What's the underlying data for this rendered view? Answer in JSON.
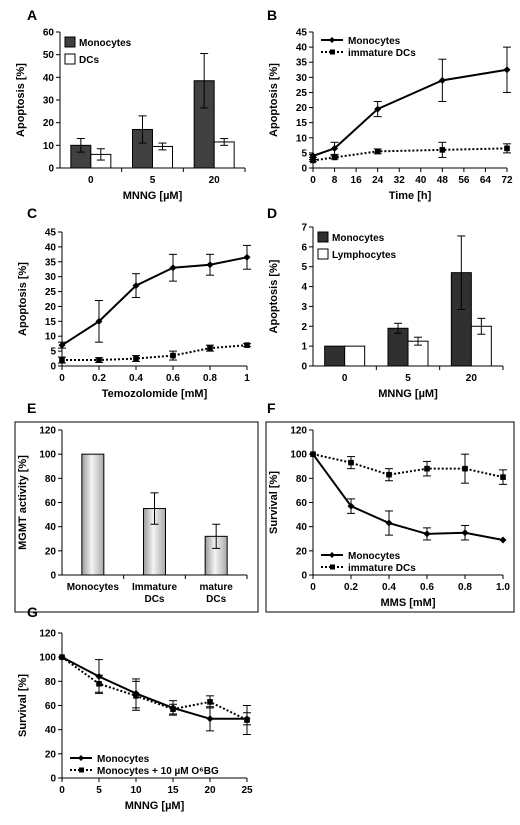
{
  "figure": {
    "panels": [
      {
        "id": "A",
        "label": "A",
        "type": "bar",
        "ylabel": "Apoptosis [%]",
        "xlabel": "MNNG [µM]",
        "ylim": [
          0,
          60
        ],
        "yticks": [
          0,
          10,
          20,
          30,
          40,
          50,
          60
        ],
        "categories": [
          "0",
          "5",
          "20"
        ],
        "series": [
          {
            "name": "Monocytes",
            "fill": "#404040",
            "values": [
              10,
              17,
              38.5
            ],
            "errors": [
              3,
              6,
              12
            ]
          },
          {
            "name": "DCs",
            "fill": "#ffffff",
            "values": [
              6,
              9.5,
              11.5
            ],
            "errors": [
              2.5,
              1.5,
              1.5
            ]
          }
        ]
      },
      {
        "id": "B",
        "label": "B",
        "type": "line",
        "ylabel": "Apoptosis [%]",
        "xlabel": "Time [h]",
        "xlim": [
          0,
          72
        ],
        "xticks": [
          0,
          8,
          16,
          24,
          32,
          40,
          48,
          56,
          64,
          72
        ],
        "ylim": [
          0,
          45
        ],
        "yticks": [
          0,
          5,
          10,
          15,
          20,
          25,
          30,
          35,
          40,
          45
        ],
        "series": [
          {
            "name": "Monocytes",
            "style": "solid",
            "marker": "diamond",
            "x": [
              0,
              8,
              24,
              48,
              72
            ],
            "y": [
              4,
              6.5,
              19.5,
              29,
              32.5
            ],
            "err": [
              0.5,
              2,
              2.5,
              7,
              7.5
            ]
          },
          {
            "name": "immature DCs",
            "style": "dotted",
            "marker": "square",
            "x": [
              0,
              8,
              24,
              48,
              72
            ],
            "y": [
              2.5,
              3.5,
              5.5,
              6,
              6.5
            ],
            "err": [
              0.3,
              0.5,
              0.8,
              2.5,
              1.5
            ]
          }
        ]
      },
      {
        "id": "C",
        "label": "C",
        "type": "line",
        "ylabel": "Apoptosis [%]",
        "xlabel": "Temozolomide [mM]",
        "xlim": [
          0,
          1
        ],
        "xticks": [
          0,
          0.2,
          0.4,
          0.6,
          0.8,
          1
        ],
        "xticklabels": [
          "0",
          "0.2",
          "0.4",
          "0.6",
          "0.8",
          "1"
        ],
        "ylim": [
          0,
          45
        ],
        "yticks": [
          0,
          5,
          10,
          15,
          20,
          25,
          30,
          35,
          40,
          45
        ],
        "series": [
          {
            "name": "",
            "style": "solid",
            "marker": "diamond",
            "x": [
              0,
              0.2,
              0.4,
              0.6,
              0.8,
              1
            ],
            "y": [
              7,
              15,
              27,
              33,
              34,
              36.5
            ],
            "err": [
              1,
              7,
              4,
              4.5,
              3.5,
              4
            ]
          },
          {
            "name": "",
            "style": "dotted",
            "marker": "square",
            "x": [
              0,
              0.2,
              0.4,
              0.6,
              0.8,
              1
            ],
            "y": [
              2,
              2,
              2.5,
              3.5,
              6,
              7
            ],
            "err": [
              1,
              0.8,
              1,
              1.5,
              1,
              0.5
            ]
          }
        ]
      },
      {
        "id": "D",
        "label": "D",
        "type": "bar",
        "ylabel": "Apoptosis [%]",
        "xlabel": "MNNG [µM]",
        "ylim": [
          0,
          7
        ],
        "yticks": [
          0,
          1,
          2,
          3,
          4,
          5,
          6,
          7
        ],
        "categories": [
          "0",
          "5",
          "20"
        ],
        "series": [
          {
            "name": "Monocytes",
            "fill": "#303030",
            "values": [
              1,
              1.9,
              4.7
            ],
            "errors": [
              0,
              0.25,
              1.85
            ]
          },
          {
            "name": "Lymphocytes",
            "fill": "#ffffff",
            "values": [
              1,
              1.25,
              2
            ],
            "errors": [
              0,
              0.2,
              0.4
            ]
          }
        ]
      },
      {
        "id": "E",
        "label": "E",
        "type": "bar",
        "ylabel": "MGMT activity [%]",
        "xlabel": "",
        "ylim": [
          0,
          120
        ],
        "yticks": [
          0,
          20,
          40,
          60,
          80,
          100,
          120
        ],
        "categories": [
          "Monocytes",
          "Immature\nDCs",
          "mature\nDCs"
        ],
        "series": [
          {
            "name": "",
            "fill": "gradient",
            "values": [
              100,
              55,
              32
            ],
            "errors": [
              0,
              13,
              10
            ]
          }
        ]
      },
      {
        "id": "F",
        "label": "F",
        "type": "line",
        "ylabel": "Survival [%]",
        "xlabel": "MMS [mM]",
        "xlim": [
          0,
          1
        ],
        "xticks": [
          0,
          0.2,
          0.4,
          0.6,
          0.8,
          1
        ],
        "xticklabels": [
          "0",
          "0.2",
          "0.4",
          "0.6",
          "0.8",
          "1.0"
        ],
        "ylim": [
          0,
          120
        ],
        "yticks": [
          0,
          20,
          40,
          60,
          80,
          100,
          120
        ],
        "legend": "bottom-left",
        "series": [
          {
            "name": "Monocytes",
            "style": "solid",
            "marker": "diamond",
            "x": [
              0,
              0.2,
              0.4,
              0.6,
              0.8,
              1
            ],
            "y": [
              100,
              57,
              43,
              34,
              35,
              29
            ],
            "err": [
              0,
              6,
              10,
              5,
              6,
              0
            ]
          },
          {
            "name": "immature DCs",
            "style": "dotted",
            "marker": "square",
            "x": [
              0,
              0.2,
              0.4,
              0.6,
              0.8,
              1
            ],
            "y": [
              100,
              93,
              83,
              88,
              88,
              81
            ],
            "err": [
              0,
              5,
              5,
              6,
              12,
              6
            ]
          }
        ]
      },
      {
        "id": "G",
        "label": "G",
        "type": "line",
        "ylabel": "Survival [%]",
        "xlabel": "MNNG [µM]",
        "xlim": [
          0,
          25
        ],
        "xticks": [
          0,
          5,
          10,
          15,
          20,
          25
        ],
        "xticklabels": [
          "0",
          "5",
          "10",
          "15",
          "20",
          "25"
        ],
        "ylim": [
          0,
          120
        ],
        "yticks": [
          0,
          20,
          40,
          60,
          80,
          100,
          120
        ],
        "legend": "bottom-left",
        "series": [
          {
            "name": "Monocytes",
            "style": "solid",
            "marker": "diamond",
            "x": [
              0,
              5,
              10,
              15,
              20,
              25
            ],
            "y": [
              100,
              84,
              70,
              58,
              49,
              49
            ],
            "err": [
              0,
              14,
              12,
              6,
              10,
              5
            ]
          },
          {
            "name": "Monocytes + 10 µM O⁶BG",
            "style": "dotted",
            "marker": "square",
            "x": [
              0,
              5,
              10,
              15,
              20,
              25
            ],
            "y": [
              100,
              78,
              68,
              57,
              63,
              48
            ],
            "err": [
              0,
              7,
              12,
              4,
              5,
              12
            ]
          }
        ]
      }
    ]
  }
}
